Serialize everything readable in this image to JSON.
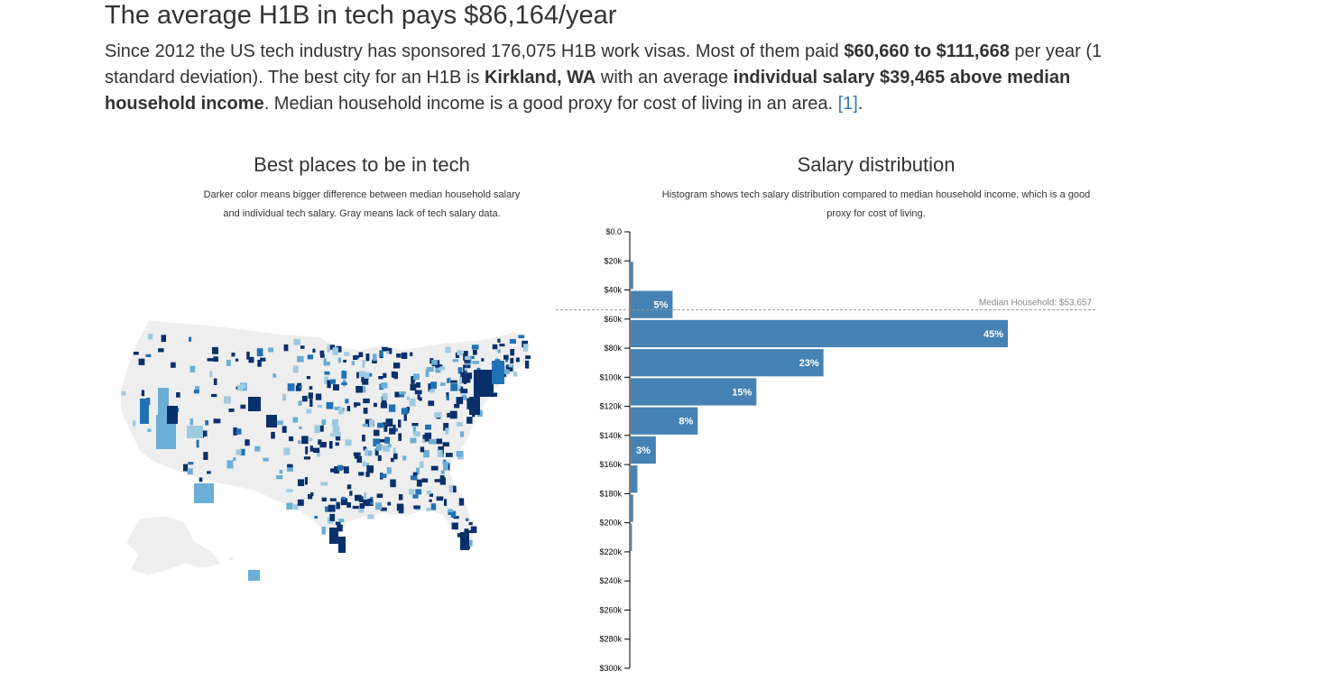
{
  "headline": "The average H1B in tech pays $86,164/year",
  "intro": {
    "p1": "Since 2012 the US tech industry has sponsored 176,075 H1B work visas. Most of them paid ",
    "range": "$60,660 to $111,668",
    "p2": " per year (1 standard deviation). The best city for an H1B is ",
    "city": "Kirkland, WA",
    "p3": " with an average ",
    "diff": "individual salary $39,465 above median household income",
    "p4": ". Median household income is a good proxy for cost of living in an area. ",
    "ref": "[1]",
    "p5": "."
  },
  "map": {
    "title": "Best places to be in tech",
    "subtitle_line1": "Darker color means bigger difference between median household salary",
    "subtitle_line2": "and individual tech salary. Gray means lack of tech salary data."
  },
  "histogram": {
    "title": "Salary distribution",
    "subtitle_line1": "Histogram shows tech salary distribution compared to median household income, which is a good",
    "subtitle_line2": "proxy for cost of living."
  },
  "colors": {
    "bar": "#4682b4",
    "map_base": "#eeeeee",
    "county_dark": "#08306b",
    "county_mid": "#2171b5",
    "county_light": "#6baed6",
    "county_pale": "#9ecae1",
    "median_line": "#999999"
  },
  "chart_data": [
    {
      "type": "bar",
      "orientation": "horizontal",
      "title": "Salary distribution",
      "y_ticks": [
        "$0.0",
        "$20k",
        "$40k",
        "$60k",
        "$80k",
        "$100k",
        "$120k",
        "$140k",
        "$160k",
        "$180k",
        "$200k",
        "$220k",
        "$240k",
        "$260k",
        "$280k",
        "$300k"
      ],
      "ylim": [
        0,
        300000
      ],
      "bin_width": 20000,
      "bins": [
        {
          "start": 20000,
          "value": 0.3,
          "label": ""
        },
        {
          "start": 40000,
          "value": 5,
          "label": "5%"
        },
        {
          "start": 60000,
          "value": 45,
          "label": "45%"
        },
        {
          "start": 80000,
          "value": 23,
          "label": "23%"
        },
        {
          "start": 100000,
          "value": 15,
          "label": "15%"
        },
        {
          "start": 120000,
          "value": 8,
          "label": "8%"
        },
        {
          "start": 140000,
          "value": 3,
          "label": "3%"
        },
        {
          "start": 160000,
          "value": 0.8,
          "label": ""
        },
        {
          "start": 180000,
          "value": 0.3,
          "label": ""
        },
        {
          "start": 200000,
          "value": 0.15,
          "label": ""
        }
      ],
      "xmax_percent": 45,
      "median_household": {
        "value": 53657,
        "label": "Median Household: $53,657"
      }
    }
  ]
}
